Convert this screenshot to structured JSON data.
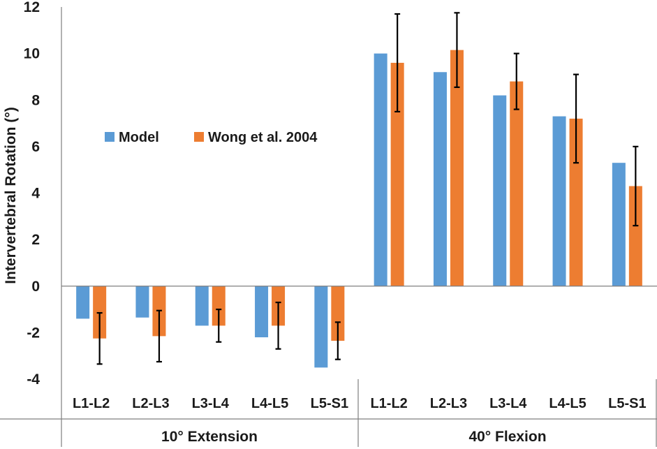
{
  "chart_data": {
    "type": "bar",
    "title": "",
    "ylabel": "Intervertebral Rotation (°)",
    "xlabel": "",
    "ylim": [
      -4,
      12
    ],
    "yticks": [
      -4,
      -2,
      0,
      2,
      4,
      6,
      8,
      10,
      12
    ],
    "ytick_labels": [
      "-4",
      "-2",
      "0",
      "2",
      "4",
      "6",
      "8",
      "10",
      "12"
    ],
    "groups": [
      {
        "label": "10° Extension",
        "categories": [
          "L1-L2",
          "L2-L3",
          "L3-L4",
          "L4-L5",
          "L5-S1"
        ]
      },
      {
        "label": "40° Flexion",
        "categories": [
          "L1-L2",
          "L2-L3",
          "L3-L4",
          "L4-L5",
          "L5-S1"
        ]
      }
    ],
    "categories": [
      "L1-L2",
      "L2-L3",
      "L3-L4",
      "L4-L5",
      "L5-S1",
      "L1-L2",
      "L2-L3",
      "L3-L4",
      "L4-L5",
      "L5-S1"
    ],
    "series": [
      {
        "name": "Model",
        "color": "#5B9BD5",
        "values": [
          -1.4,
          -1.35,
          -1.7,
          -2.2,
          -3.5,
          10.0,
          9.2,
          8.2,
          7.3,
          5.3
        ]
      },
      {
        "name": "Wong et al. 2004",
        "color": "#ED7D31",
        "values": [
          -2.25,
          -2.15,
          -1.7,
          -1.7,
          -2.35,
          9.6,
          10.15,
          8.8,
          7.2,
          4.3
        ],
        "error": [
          1.1,
          1.1,
          0.7,
          1.0,
          0.8,
          2.1,
          1.6,
          1.2,
          1.9,
          1.7
        ]
      }
    ],
    "legend_position": "center-left",
    "grid": false
  }
}
